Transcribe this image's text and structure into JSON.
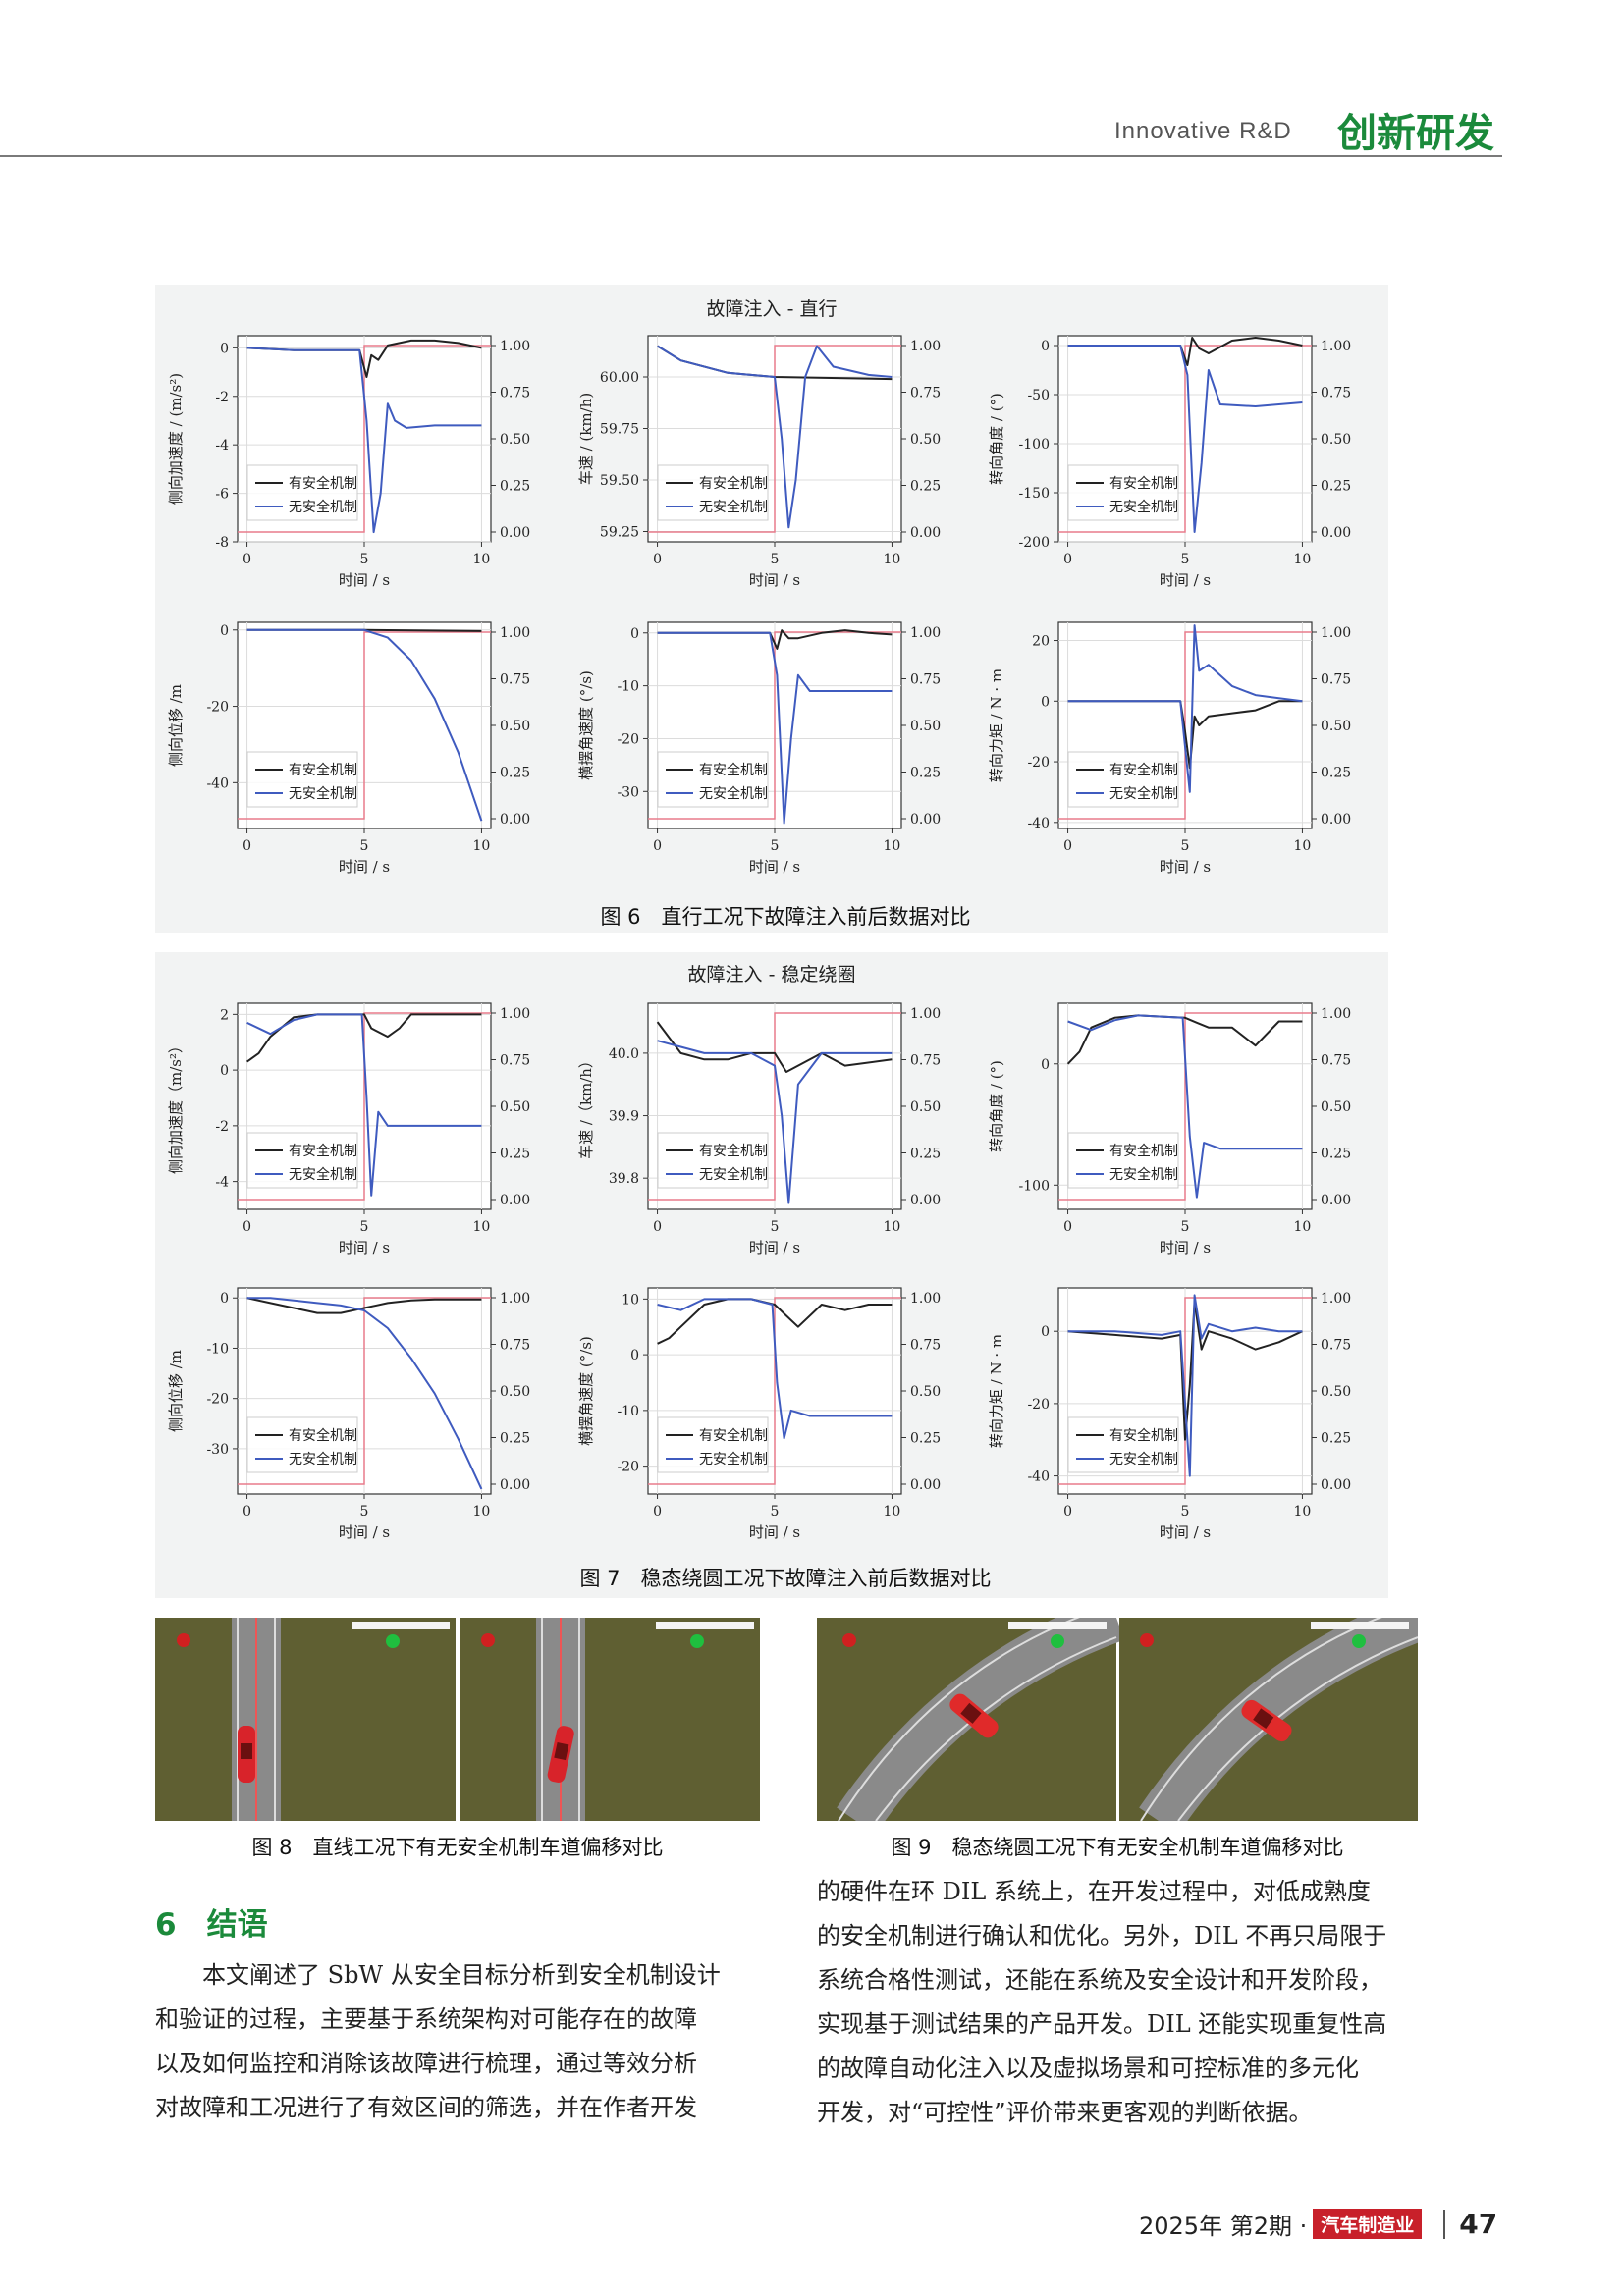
{
  "header": {
    "en": "Innovative R&D",
    "zh": "创新研发"
  },
  "legend": {
    "with": "有安全机制",
    "without": "无安全机制"
  },
  "xlabel": "时间 / s",
  "fig6": {
    "title": "故障注入 - 直行",
    "caption": "图 6　直行工况下故障注入前后数据对比"
  },
  "fig7": {
    "title": "故障注入 - 稳定绕圈",
    "caption": "图 7　稳态绕圆工况下故障注入前后数据对比"
  },
  "fig8": {
    "caption": "图 8　直线工况下有无安全机制车道偏移对比"
  },
  "fig9": {
    "caption": "图 9　稳态绕圆工况下有无安全机制车道偏移对比"
  },
  "chart_data": [
    {
      "figure": "图 6",
      "panel": 1,
      "type": "line",
      "ylabel": "侧向加速度 / (m/s²)",
      "y_ticks": [
        "0",
        "-2",
        "-4",
        "-6",
        "-8"
      ],
      "ylim": [
        -8,
        0.5
      ],
      "y2_ticks": [
        "0.00",
        "0.25",
        "0.50",
        "0.75",
        "1.00"
      ],
      "x_ticks": [
        "0",
        "5",
        "10"
      ],
      "series": [
        {
          "name": "有安全机制",
          "x": [
            0,
            2,
            4.8,
            5.1,
            5.3,
            5.6,
            6,
            7,
            8,
            9,
            10
          ],
          "y": [
            0,
            -0.1,
            -0.1,
            -1.2,
            -0.3,
            -0.5,
            0.1,
            0.3,
            0.3,
            0.2,
            0
          ]
        },
        {
          "name": "无安全机制",
          "x": [
            0,
            2,
            4.8,
            5.1,
            5.4,
            5.7,
            6,
            6.3,
            6.8,
            8,
            10
          ],
          "y": [
            0,
            -0.1,
            -0.1,
            -3,
            -7.6,
            -6,
            -2.3,
            -3,
            -3.3,
            -3.2,
            -3.2
          ]
        }
      ]
    },
    {
      "figure": "图 6",
      "panel": 2,
      "type": "line",
      "ylabel": "车速 / (km/h)",
      "y_ticks": [
        "60.00",
        "59.75",
        "59.50",
        "59.25"
      ],
      "ylim": [
        59.2,
        60.2
      ],
      "y2_ticks": [
        "0.00",
        "0.25",
        "0.50",
        "0.75",
        "1.00"
      ],
      "x_ticks": [
        "0",
        "5",
        "10"
      ],
      "series": [
        {
          "name": "有安全机制",
          "x": [
            0,
            1,
            3,
            5,
            10
          ],
          "y": [
            60.15,
            60.08,
            60.02,
            60.0,
            59.99
          ]
        },
        {
          "name": "无安全机制",
          "x": [
            0,
            1,
            3,
            5,
            5.3,
            5.6,
            5.9,
            6.3,
            6.8,
            7.5,
            9,
            10
          ],
          "y": [
            60.15,
            60.08,
            60.02,
            60.0,
            59.7,
            59.27,
            59.5,
            60.0,
            60.15,
            60.05,
            60.01,
            60.0
          ]
        }
      ]
    },
    {
      "figure": "图 6",
      "panel": 3,
      "type": "line",
      "ylabel": "转向角度 / (°)",
      "y_ticks": [
        "0",
        "-50",
        "-100",
        "-150",
        "-200"
      ],
      "ylim": [
        -200,
        10
      ],
      "y2_ticks": [
        "0.00",
        "0.25",
        "0.50",
        "0.75",
        "1.00"
      ],
      "x_ticks": [
        "0",
        "5",
        "10"
      ],
      "series": [
        {
          "name": "有安全机制",
          "x": [
            0,
            4.8,
            5.1,
            5.3,
            5.6,
            6,
            7,
            8,
            9,
            10
          ],
          "y": [
            0,
            0,
            -20,
            8,
            -3,
            -8,
            5,
            8,
            5,
            0
          ]
        },
        {
          "name": "无安全机制",
          "x": [
            0,
            4.8,
            5.1,
            5.4,
            5.7,
            6,
            6.5,
            8,
            10
          ],
          "y": [
            0,
            0,
            -30,
            -190,
            -120,
            -25,
            -60,
            -62,
            -58
          ]
        }
      ]
    },
    {
      "figure": "图 6",
      "panel": 4,
      "type": "line",
      "ylabel": "侧向位移 /m",
      "y_ticks": [
        "0",
        "-20",
        "-40"
      ],
      "ylim": [
        -52,
        2
      ],
      "y2_ticks": [
        "0.00",
        "0.25",
        "0.50",
        "0.75",
        "1.00"
      ],
      "x_ticks": [
        "0",
        "5",
        "10"
      ],
      "series": [
        {
          "name": "有安全机制",
          "x": [
            0,
            5,
            10
          ],
          "y": [
            0,
            0,
            -0.3
          ]
        },
        {
          "name": "无安全机制",
          "x": [
            0,
            5,
            6,
            7,
            8,
            9,
            10
          ],
          "y": [
            0,
            0,
            -2,
            -8,
            -18,
            -32,
            -50
          ]
        }
      ]
    },
    {
      "figure": "图 6",
      "panel": 5,
      "type": "line",
      "ylabel": "横摆角速度 (°/s)",
      "y_ticks": [
        "0",
        "-10",
        "-20",
        "-30"
      ],
      "ylim": [
        -37,
        2
      ],
      "y2_ticks": [
        "0.00",
        "0.25",
        "0.50",
        "0.75",
        "1.00"
      ],
      "x_ticks": [
        "0",
        "5",
        "10"
      ],
      "series": [
        {
          "name": "有安全机制",
          "x": [
            0,
            4.8,
            5.1,
            5.3,
            5.6,
            6,
            7,
            8,
            9,
            10
          ],
          "y": [
            0,
            0,
            -3,
            0.5,
            -1,
            -1,
            0,
            0.5,
            0,
            -0.3
          ]
        },
        {
          "name": "无安全机制",
          "x": [
            0,
            4.8,
            5.1,
            5.4,
            5.7,
            6,
            6.5,
            8,
            10
          ],
          "y": [
            0,
            0,
            -8,
            -36,
            -20,
            -8,
            -11,
            -11,
            -11
          ]
        }
      ]
    },
    {
      "figure": "图 6",
      "panel": 6,
      "type": "line",
      "ylabel": "转向力矩 / N · m",
      "y_ticks": [
        "20",
        "0",
        "-20",
        "-40"
      ],
      "ylim": [
        -42,
        26
      ],
      "y2_ticks": [
        "0.00",
        "0.25",
        "0.50",
        "0.75",
        "1.00"
      ],
      "x_ticks": [
        "0",
        "5",
        "10"
      ],
      "series": [
        {
          "name": "有安全机制",
          "x": [
            0,
            4.8,
            5.0,
            5.2,
            5.4,
            5.6,
            6,
            7,
            8,
            9,
            10
          ],
          "y": [
            0,
            0,
            -10,
            -22,
            -5,
            -8,
            -5,
            -4,
            -3,
            0,
            0
          ]
        },
        {
          "name": "无安全机制",
          "x": [
            0,
            4.8,
            5.0,
            5.2,
            5.4,
            5.6,
            6,
            7,
            8,
            9,
            10
          ],
          "y": [
            0,
            0,
            -15,
            -30,
            25,
            10,
            12,
            5,
            2,
            1,
            0
          ]
        }
      ]
    },
    {
      "figure": "图 7",
      "panel": 1,
      "type": "line",
      "ylabel": "侧向加速度（m/s²）",
      "y_ticks": [
        "2",
        "0",
        "-2",
        "-4"
      ],
      "ylim": [
        -5,
        2.4
      ],
      "y2_ticks": [
        "0.00",
        "0.25",
        "0.50",
        "0.75",
        "1.00"
      ],
      "x_ticks": [
        "0",
        "5",
        "10"
      ],
      "series": [
        {
          "name": "有安全机制",
          "x": [
            0,
            0.5,
            1,
            2,
            3,
            4,
            5,
            5.3,
            6,
            6.5,
            7,
            8,
            9,
            10
          ],
          "y": [
            0.3,
            0.6,
            1.2,
            1.9,
            2.0,
            2.0,
            2.0,
            1.5,
            1.2,
            1.5,
            2.0,
            2.0,
            2.0,
            2.0
          ]
        },
        {
          "name": "无安全机制",
          "x": [
            0,
            1,
            2,
            3,
            4,
            4.9,
            5.1,
            5.3,
            5.6,
            6,
            7,
            10
          ],
          "y": [
            1.7,
            1.3,
            1.8,
            2.0,
            2.0,
            2.0,
            -1,
            -4.5,
            -1.5,
            -2,
            -2,
            -2
          ]
        }
      ]
    },
    {
      "figure": "图 7",
      "panel": 2,
      "type": "line",
      "ylabel": "车速 /（km/h）",
      "y_ticks": [
        "40.0",
        "39.9",
        "39.8"
      ],
      "ylim": [
        39.75,
        40.08
      ],
      "y2_ticks": [
        "0.00",
        "0.25",
        "0.50",
        "0.75",
        "1.00"
      ],
      "x_ticks": [
        "0",
        "5",
        "10"
      ],
      "series": [
        {
          "name": "有安全机制",
          "x": [
            0,
            1,
            2,
            3,
            4,
            5,
            5.5,
            6,
            7,
            8,
            10
          ],
          "y": [
            40.05,
            40.0,
            39.99,
            39.99,
            40.0,
            40.0,
            39.97,
            39.98,
            40.0,
            39.98,
            39.99
          ]
        },
        {
          "name": "无安全机制",
          "x": [
            0,
            1,
            2,
            3,
            4,
            5,
            5.3,
            5.6,
            6,
            7,
            8,
            10
          ],
          "y": [
            40.02,
            40.01,
            40.0,
            40.0,
            40.0,
            39.98,
            39.9,
            39.76,
            39.95,
            40.0,
            40.0,
            40.0
          ]
        }
      ]
    },
    {
      "figure": "图 7",
      "panel": 3,
      "type": "line",
      "ylabel": "转向角度 / (°)",
      "y_ticks": [
        "0",
        "-100"
      ],
      "ylim": [
        -120,
        50
      ],
      "y2_ticks": [
        "0.00",
        "0.25",
        "0.50",
        "0.75",
        "1.00"
      ],
      "x_ticks": [
        "0",
        "5",
        "10"
      ],
      "series": [
        {
          "name": "有安全机制",
          "x": [
            0,
            0.5,
            1,
            2,
            3,
            4,
            5,
            5.5,
            6,
            7,
            8,
            9,
            10
          ],
          "y": [
            0,
            10,
            30,
            38,
            40,
            39,
            38,
            34,
            30,
            30,
            15,
            35,
            35
          ]
        },
        {
          "name": "无安全机制",
          "x": [
            0,
            1,
            2,
            3,
            4,
            4.9,
            5.2,
            5.5,
            5.8,
            6.5,
            8,
            10
          ],
          "y": [
            35,
            28,
            36,
            40,
            39,
            38,
            -60,
            -110,
            -65,
            -70,
            -70,
            -70
          ]
        }
      ]
    },
    {
      "figure": "图 7",
      "panel": 4,
      "type": "line",
      "ylabel": "侧向位移 /m",
      "y_ticks": [
        "0",
        "-10",
        "-20",
        "-30"
      ],
      "ylim": [
        -39,
        2
      ],
      "y2_ticks": [
        "0.00",
        "0.25",
        "0.50",
        "0.75",
        "1.00"
      ],
      "x_ticks": [
        "0",
        "5",
        "10"
      ],
      "series": [
        {
          "name": "有安全机制",
          "x": [
            0,
            1,
            2,
            3,
            4,
            5,
            6,
            7,
            8,
            9,
            10
          ],
          "y": [
            0,
            -1,
            -2,
            -3,
            -3,
            -2,
            -1,
            -0.5,
            -0.3,
            -0.3,
            -0.3
          ]
        },
        {
          "name": "无安全机制",
          "x": [
            0,
            1,
            2,
            3,
            4,
            5,
            6,
            7,
            8,
            9,
            10
          ],
          "y": [
            0,
            0,
            -0.5,
            -1,
            -1.5,
            -2.5,
            -6,
            -12,
            -19,
            -28,
            -38
          ]
        }
      ]
    },
    {
      "figure": "图 7",
      "panel": 5,
      "type": "line",
      "ylabel": "横摆角速度 (°/s)",
      "y_ticks": [
        "10",
        "0",
        "-10",
        "-20"
      ],
      "ylim": [
        -25,
        12
      ],
      "y2_ticks": [
        "0.00",
        "0.25",
        "0.50",
        "0.75",
        "1.00"
      ],
      "x_ticks": [
        "0",
        "5",
        "10"
      ],
      "series": [
        {
          "name": "有安全机制",
          "x": [
            0,
            0.5,
            1,
            2,
            3,
            4,
            5,
            5.5,
            6,
            7,
            8,
            9,
            10
          ],
          "y": [
            2,
            3,
            5,
            9,
            10,
            10,
            9,
            7,
            5,
            9,
            8,
            9,
            9
          ]
        },
        {
          "name": "无安全机制",
          "x": [
            0,
            1,
            2,
            3,
            4,
            4.9,
            5.1,
            5.4,
            5.7,
            6.5,
            8,
            10
          ],
          "y": [
            9,
            8,
            10,
            10,
            10,
            9,
            -5,
            -15,
            -10,
            -11,
            -11,
            -11
          ]
        }
      ]
    },
    {
      "figure": "图 7",
      "panel": 6,
      "type": "line",
      "ylabel": "转向力矩 / N · m",
      "y_ticks": [
        "0",
        "-20",
        "-40"
      ],
      "ylim": [
        -45,
        12
      ],
      "y2_ticks": [
        "0.00",
        "0.25",
        "0.50",
        "0.75",
        "1.00"
      ],
      "x_ticks": [
        "0",
        "5",
        "10"
      ],
      "series": [
        {
          "name": "有安全机制",
          "x": [
            0,
            2,
            4,
            4.8,
            5.0,
            5.2,
            5.4,
            5.7,
            6,
            7,
            8,
            9,
            10
          ],
          "y": [
            0,
            -1,
            -2,
            -1,
            -30,
            -15,
            8,
            -5,
            0,
            -2,
            -5,
            -3,
            0
          ]
        },
        {
          "name": "无安全机制",
          "x": [
            0,
            2,
            4,
            4.8,
            5.0,
            5.2,
            5.4,
            5.7,
            6,
            7,
            8,
            9,
            10
          ],
          "y": [
            0,
            0,
            -1,
            0,
            -20,
            -40,
            10,
            -2,
            2,
            0,
            1,
            0,
            0
          ]
        }
      ]
    }
  ],
  "body": {
    "section_title": "6　结语",
    "left_lines": [
      "　　本文阐述了 SbW 从安全目标分析到安全机制设计",
      "和验证的过程，主要基于系统架构对可能存在的故障",
      "以及如何监控和消除该故障进行梳理，通过等效分析",
      "对故障和工况进行了有效区间的筛选，并在作者开发"
    ],
    "right_lines": [
      "的硬件在环 DIL 系统上，在开发过程中，对低成熟度",
      "的安全机制进行确认和优化。另外，DIL 不再只局限于",
      "系统合格性测试，还能在系统及安全设计和开发阶段，",
      "实现基于测试结果的产品开发。DIL 还能实现重复性高",
      "的故障自动化注入以及虚拟场景和可控标准的多元化",
      "开发，对“可控性”评价带来更客观的判断依据。"
    ]
  },
  "footer": {
    "issue": "2025年  第2期 ·",
    "magazine": "汽车制造业",
    "page": "47"
  },
  "colors": {
    "with": "#222222",
    "without": "#3f5bbf",
    "fault": "#e87c8c",
    "brand": "#1b8a3b",
    "grass": "#5f5f32"
  }
}
